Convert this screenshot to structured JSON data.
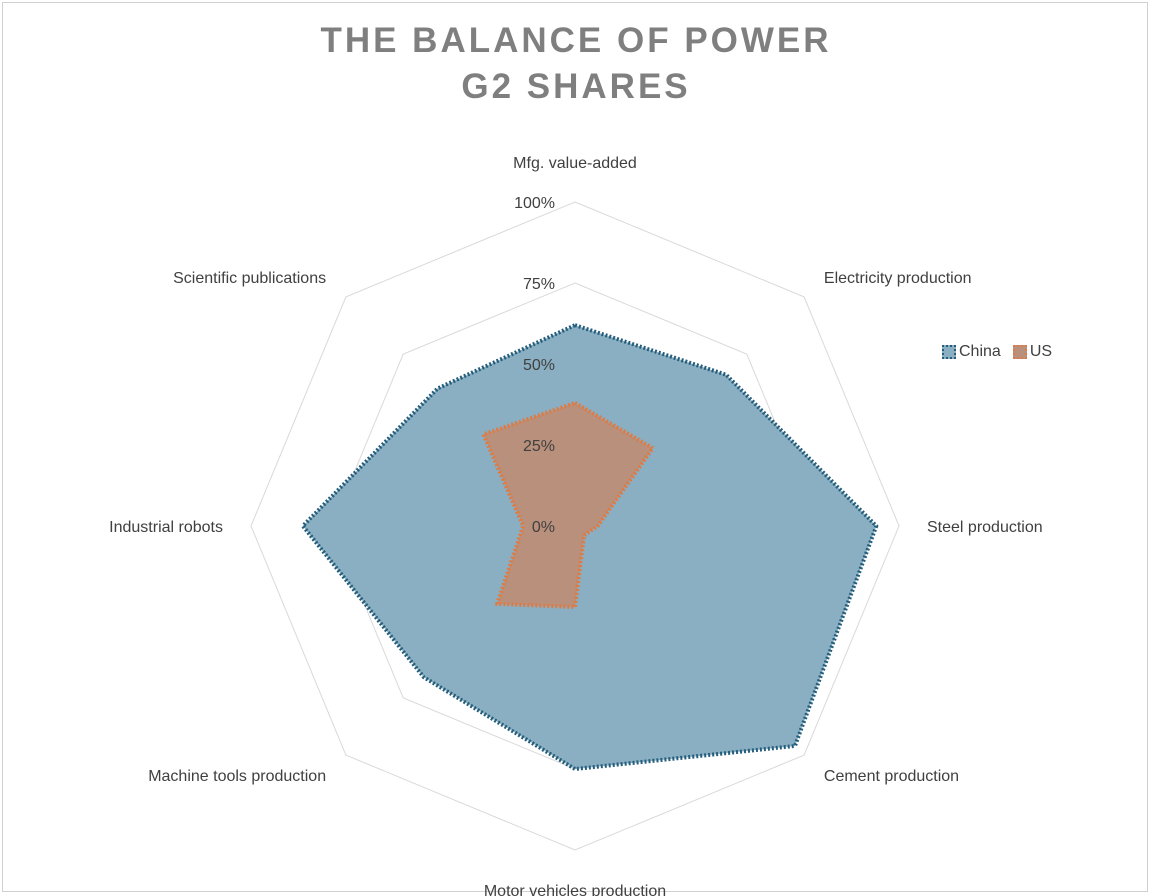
{
  "title_lines": [
    "THE BALANCE OF POWER",
    "G2 SHARES"
  ],
  "chart_data": {
    "type": "radar",
    "categories": [
      "Mfg. value-added",
      "Electricity production",
      "Steel production",
      "Cement production",
      "Motor vehicles production",
      "Machine tools production",
      "Industrial robots",
      "Scientific publications"
    ],
    "series": [
      {
        "name": "China",
        "values": [
          62,
          66,
          93,
          96,
          75,
          66,
          84,
          60
        ],
        "fill": "#8aafc2",
        "stroke": "#245e7c"
      },
      {
        "name": "US",
        "values": [
          38,
          34,
          7,
          4,
          25,
          34,
          16,
          40
        ],
        "fill": "#b9907c",
        "stroke": "#e07a43"
      }
    ],
    "rlim": [
      0,
      100
    ],
    "ticks": [
      "0%",
      "25%",
      "50%",
      "75%",
      "100%"
    ],
    "tick_values": [
      0,
      25,
      50,
      75,
      100
    ],
    "legend_position": "right",
    "grid": true
  }
}
